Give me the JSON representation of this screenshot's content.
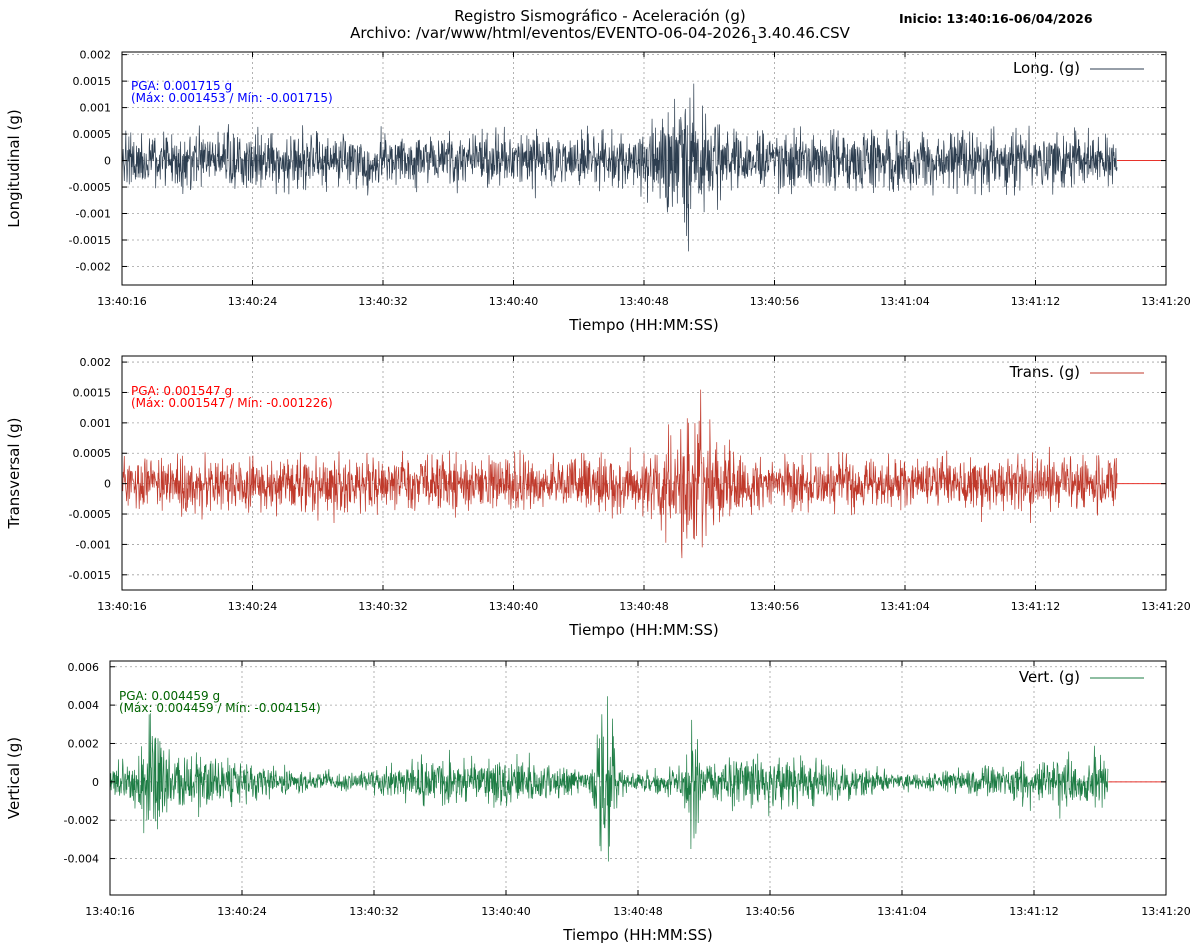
{
  "title_line1": "Registro Sismográfico - Aceleración (g)",
  "title_line2_prefix": "Archivo: /var/www/html/eventos/EVENTO-06-04-2026",
  "title_line2_sub": "1",
  "title_line2_suffix": "3.40.46.CSV",
  "start_label": "Inicio: 13:40:16-06/04/2026",
  "chart_data": [
    {
      "type": "line",
      "id": "long",
      "ylabel": "Longitudinal (g)",
      "xlabel": "Tiempo (HH:MM:SS)",
      "legend": "Long. (g)",
      "legend_position": "top-right",
      "color": "#2d3e50",
      "x_ticks": [
        "13:40:16",
        "13:40:24",
        "13:40:32",
        "13:40:40",
        "13:40:48",
        "13:40:56",
        "13:41:04",
        "13:41:12",
        "13:41:20"
      ],
      "x_range": [
        "13:40:16",
        "13:41:20"
      ],
      "signal_end": "13:41:17",
      "y_ticks": [
        "0.002",
        "0.0015",
        "0.001",
        "0.0005",
        "0",
        "-0.0005",
        "-0.001",
        "-0.0015",
        "-0.002"
      ],
      "ylim": [
        -0.00235,
        0.00205
      ],
      "pga_line1": "PGA: 0.001715 g",
      "pga_line2": "(Máx: 0.001453 / Mín: -0.001715)",
      "pga_color": "#0000ff",
      "max": 0.001453,
      "min": -0.001715,
      "grid": true
    },
    {
      "type": "line",
      "id": "trans",
      "ylabel": "Transversal (g)",
      "xlabel": "Tiempo (HH:MM:SS)",
      "legend": "Trans. (g)",
      "legend_position": "top-right",
      "color": "#c0392b",
      "x_ticks": [
        "13:40:16",
        "13:40:24",
        "13:40:32",
        "13:40:40",
        "13:40:48",
        "13:40:56",
        "13:41:04",
        "13:41:12",
        "13:41:20"
      ],
      "x_range": [
        "13:40:16",
        "13:41:20"
      ],
      "signal_end": "13:41:17",
      "y_ticks": [
        "0.002",
        "0.0015",
        "0.001",
        "0.0005",
        "0",
        "-0.0005",
        "-0.001",
        "-0.0015"
      ],
      "ylim": [
        -0.00175,
        0.0021
      ],
      "pga_line1": "PGA: 0.001547 g",
      "pga_line2": "(Máx: 0.001547 / Mín: -0.001226)",
      "pga_color": "#ff0000",
      "max": 0.001547,
      "min": -0.001226,
      "grid": true
    },
    {
      "type": "line",
      "id": "vert",
      "ylabel": "Vertical (g)",
      "xlabel": "Tiempo (HH:MM:SS)",
      "legend": "Vert. (g)",
      "legend_position": "top-right",
      "color": "#1e7d45",
      "x_ticks": [
        "13:40:16",
        "13:40:24",
        "13:40:32",
        "13:40:40",
        "13:40:48",
        "13:40:56",
        "13:41:04",
        "13:41:12",
        "13:41:20"
      ],
      "x_range": [
        "13:40:16",
        "13:41:20"
      ],
      "signal_end": "13:41:16.5",
      "y_ticks": [
        "0.006",
        "0.004",
        "0.002",
        "0",
        "-0.002",
        "-0.004"
      ],
      "ylim": [
        -0.0059,
        0.0063
      ],
      "pga_line1": "PGA: 0.004459 g",
      "pga_line2": "(Máx: 0.004459 / Mín: -0.004154)",
      "pga_color": "#006400",
      "max": 0.004459,
      "min": -0.004154,
      "grid": true
    }
  ]
}
